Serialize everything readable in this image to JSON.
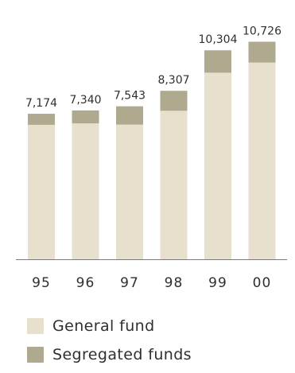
{
  "colors": {
    "general_fund": "#e6e0cc",
    "segregated_funds": "#aea98f",
    "axis": "#7a7a7a",
    "text": "#2f2f2f"
  },
  "chart_data": {
    "type": "bar",
    "categories": [
      "95",
      "96",
      "97",
      "98",
      "99",
      "00"
    ],
    "totals": [
      7174,
      7340,
      7543,
      8307,
      10304,
      10726
    ],
    "total_labels": [
      "7,174",
      "7,340",
      "7,543",
      "8,307",
      "10,304",
      "10,726"
    ],
    "series": [
      {
        "name": "General fund",
        "values": [
          6630,
          6700,
          6640,
          7320,
          9200,
          9700
        ],
        "color": "#e6e0cc"
      },
      {
        "name": "Segregated funds",
        "values": [
          544,
          640,
          903,
          987,
          1104,
          1026
        ],
        "color": "#aea98f"
      }
    ],
    "ylim": [
      0,
      12000
    ],
    "title": "",
    "xlabel": "",
    "ylabel": "",
    "grid": false,
    "legend_position": "bottom-left",
    "stacked": true
  },
  "legend": {
    "items": [
      {
        "label": "General fund",
        "color": "#e6e0cc"
      },
      {
        "label": "Segregated funds",
        "color": "#aea98f"
      }
    ]
  }
}
